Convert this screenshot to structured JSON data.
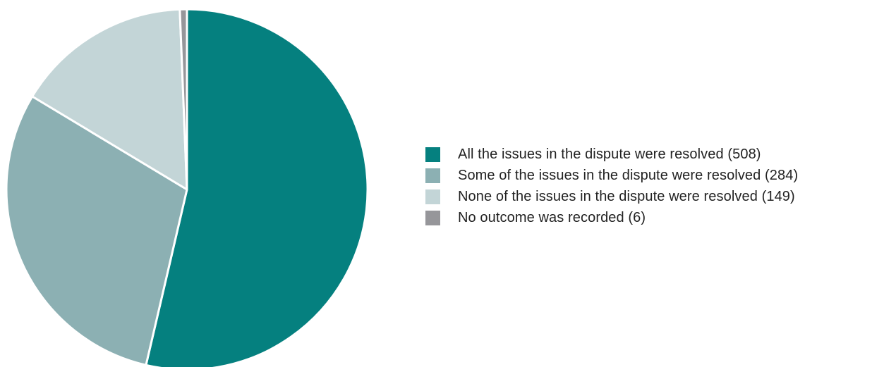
{
  "chart_data": {
    "type": "pie",
    "title": "",
    "categories": [
      "All the issues in the dispute were resolved",
      "Some of the issues in the dispute were resolved",
      "None of the issues in the dispute were resolved",
      "No outcome was recorded"
    ],
    "values": [
      508,
      284,
      149,
      6
    ],
    "colors": [
      "#05807f",
      "#8cb0b3",
      "#c3d5d7",
      "#96969a"
    ],
    "legend_position": "right",
    "start_angle_deg": 0,
    "direction": "clockwise"
  },
  "legend": {
    "items": [
      {
        "label": "All the issues in the dispute were resolved (508)"
      },
      {
        "label": "Some of the issues in the dispute were resolved (284)"
      },
      {
        "label": "None of the issues in the dispute were resolved (149)"
      },
      {
        "label": "No outcome was recorded (6)"
      }
    ]
  }
}
